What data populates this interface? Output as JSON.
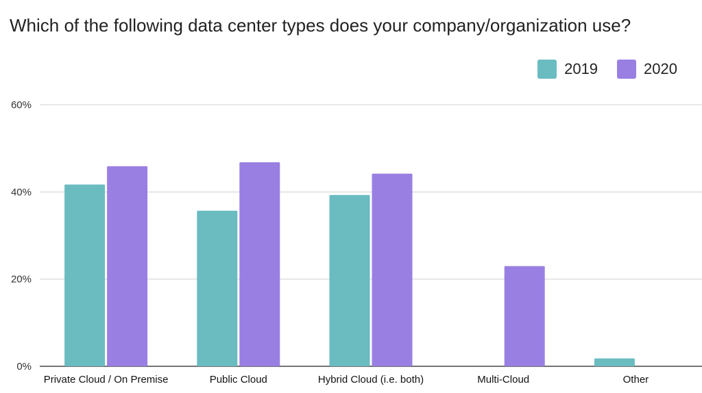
{
  "chart_data": {
    "type": "bar",
    "title": "Which of the following data center types does your company/organization use?",
    "xlabel": "",
    "ylabel": "",
    "categories": [
      "Private Cloud / On Premise",
      "Public Cloud",
      "Hybrid Cloud (i.e. both)",
      "Multi-Cloud",
      "Other"
    ],
    "series": [
      {
        "name": "2019",
        "color": "#6abcc1",
        "values": [
          41.7,
          35.7,
          39.3,
          null,
          1.8
        ]
      },
      {
        "name": "2020",
        "color": "#9a7fe3",
        "values": [
          45.9,
          46.8,
          44.2,
          23.0,
          null
        ]
      }
    ],
    "ylim": [
      0,
      60
    ],
    "yticks": [
      0,
      20,
      40,
      60
    ],
    "ytick_labels": [
      "0%",
      "20%",
      "40%",
      "60%"
    ],
    "grid": true,
    "legend_position": "top-right"
  }
}
